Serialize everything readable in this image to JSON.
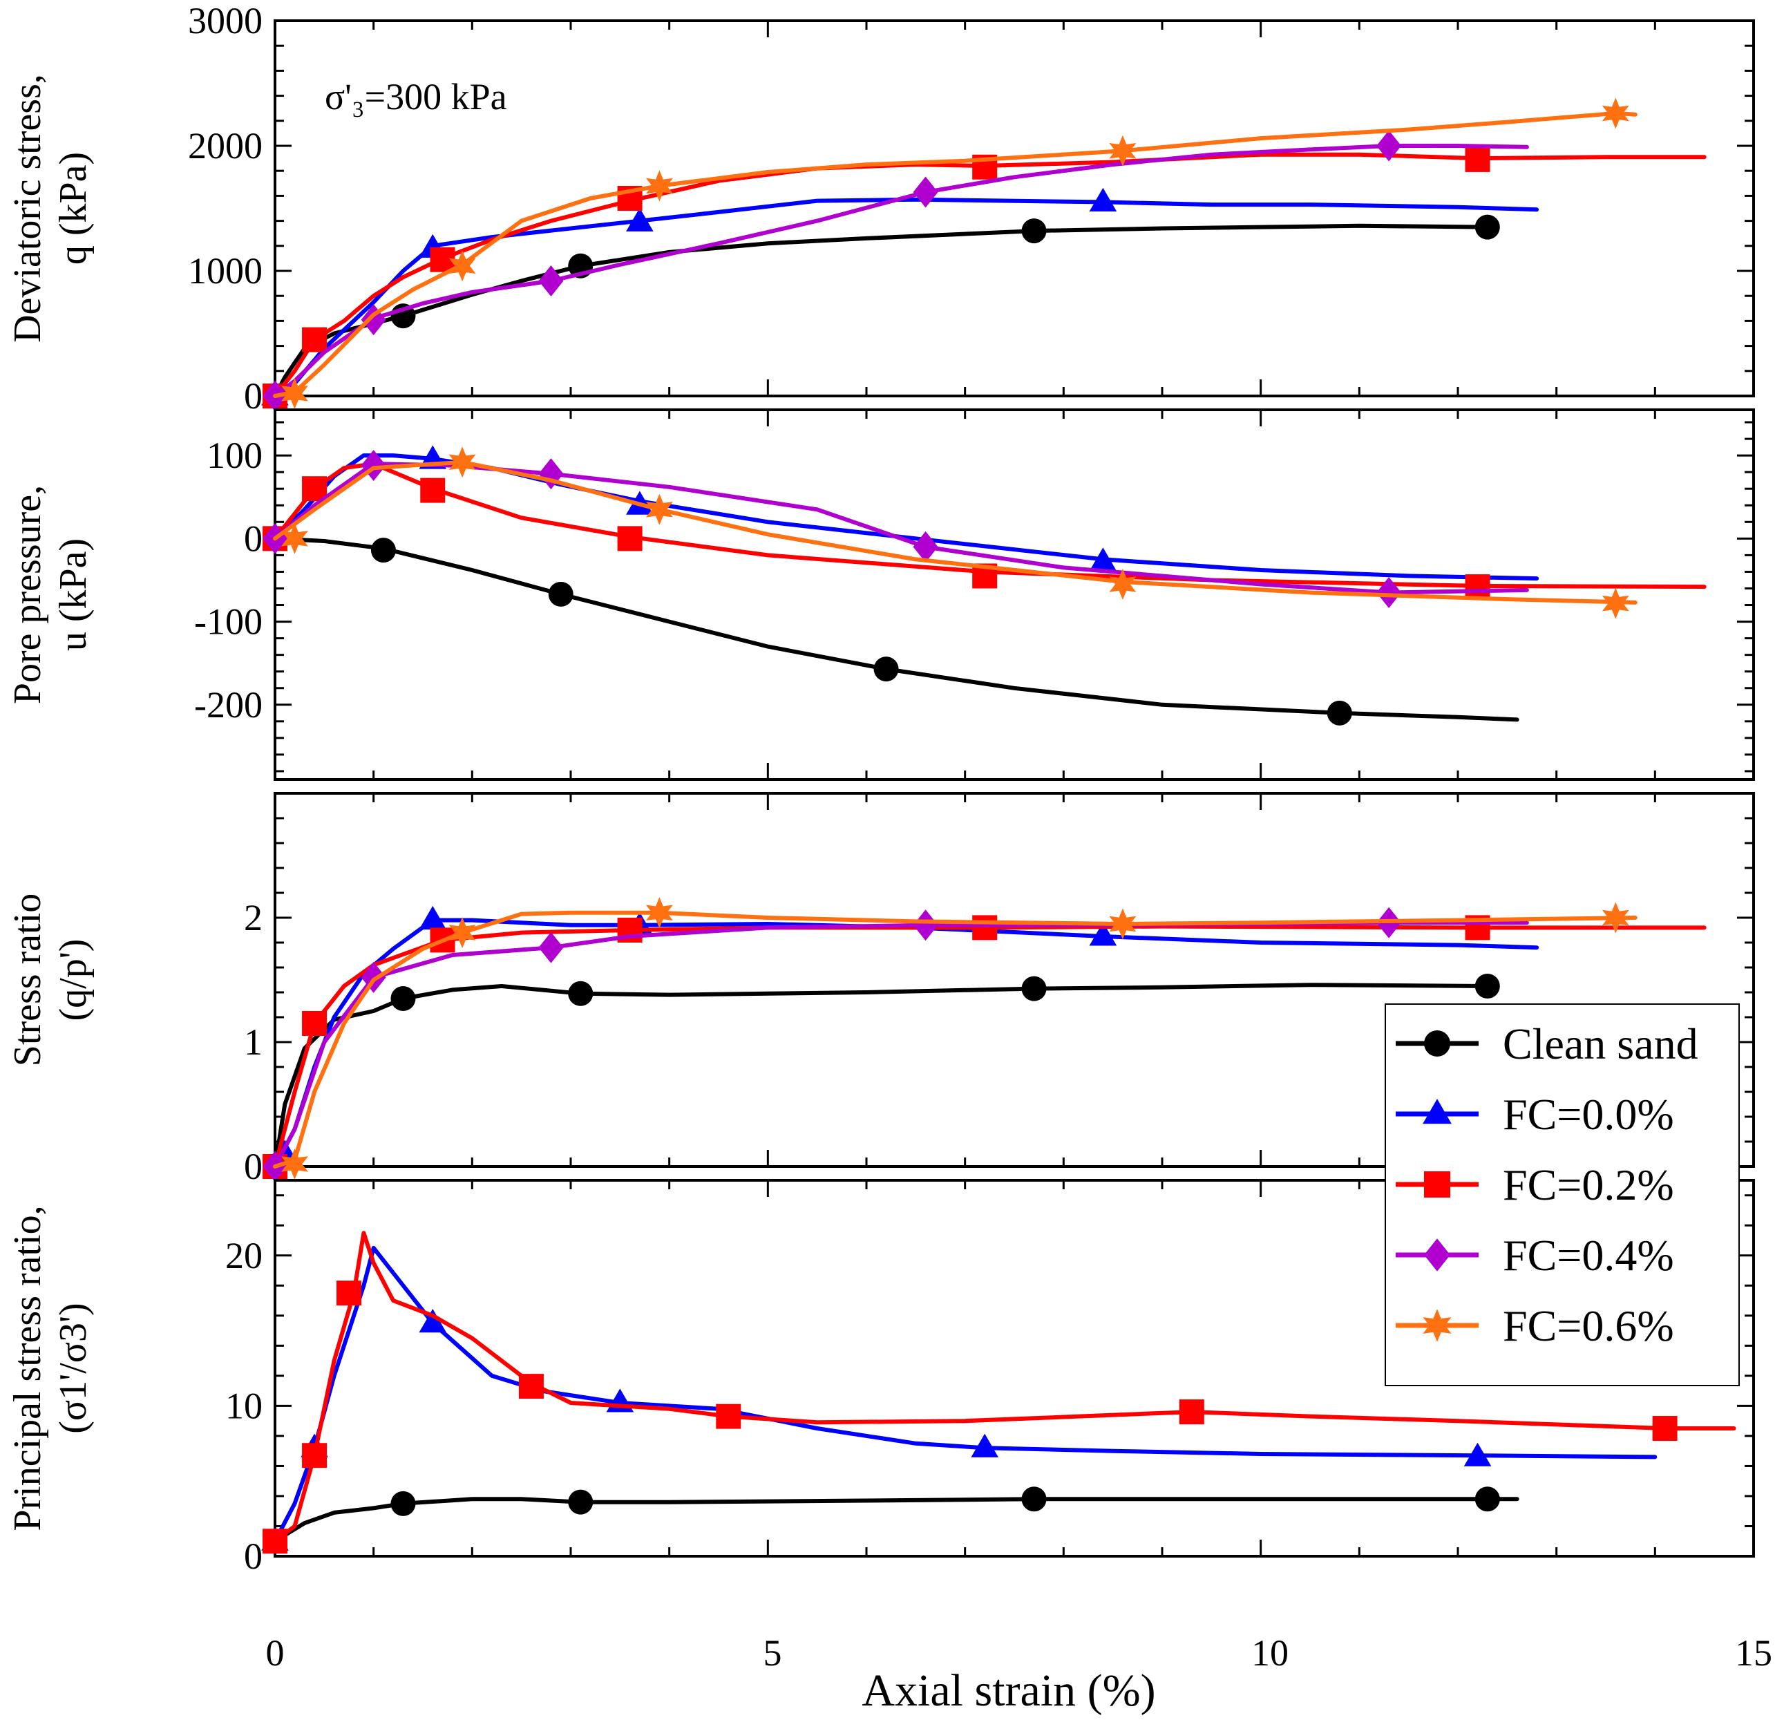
{
  "figure": {
    "annotation": "σ'₃=300 kPa",
    "xlabel": "Axial strain (%)",
    "xlim": [
      0,
      15
    ],
    "xticks": [
      "0",
      "5",
      "10",
      "15"
    ]
  },
  "colors": {
    "Clean sand": "#000000",
    "FC=0.0%": "#0000ff",
    "FC=0.2%": "#ff0000",
    "FC=0.4%": "#b000d0",
    "FC=0.6%": "#ff7010"
  },
  "legend": [
    {
      "name": "Clean sand",
      "marker": "circle"
    },
    {
      "name": "FC=0.0%",
      "marker": "triangle"
    },
    {
      "name": "FC=0.2%",
      "marker": "square"
    },
    {
      "name": "FC=0.4%",
      "marker": "diamond"
    },
    {
      "name": "FC=0.6%",
      "marker": "star"
    }
  ],
  "chart_data": [
    {
      "type": "line",
      "id": "q",
      "ylabel_lines": [
        "Deviatoric stress,",
        "q (kPa)"
      ],
      "ylim": [
        0,
        3000
      ],
      "yticks": [
        "0",
        "1000",
        "2000",
        "3000"
      ],
      "series": [
        {
          "name": "Clean sand",
          "marker": "circle",
          "x": [
            0,
            0.1,
            0.3,
            0.6,
            1.0,
            1.3,
            2.0,
            2.5,
            3.1,
            4.0,
            5.0,
            6.0,
            7.7,
            9.0,
            10.0,
            11.0,
            12.3
          ],
          "y": [
            0,
            150,
            380,
            500,
            580,
            640,
            810,
            920,
            1040,
            1150,
            1220,
            1260,
            1320,
            1340,
            1350,
            1360,
            1350
          ],
          "mx": [
            0,
            1.3,
            3.1,
            7.7,
            12.3
          ],
          "my": [
            0,
            640,
            1040,
            1320,
            1350
          ]
        },
        {
          "name": "FC=0.0%",
          "marker": "triangle",
          "x": [
            0,
            0.2,
            0.5,
            1.0,
            1.3,
            1.6,
            2.2,
            3.0,
            3.7,
            4.5,
            5.5,
            6.5,
            8.4,
            9.5,
            10.5,
            12.0,
            12.8
          ],
          "y": [
            0,
            100,
            380,
            750,
            1000,
            1200,
            1270,
            1340,
            1400,
            1470,
            1560,
            1570,
            1550,
            1530,
            1530,
            1510,
            1490
          ],
          "mx": [
            0,
            1.6,
            3.7,
            8.4
          ],
          "my": [
            0,
            1180,
            1390,
            1550
          ]
        },
        {
          "name": "FC=0.2%",
          "marker": "square",
          "x": [
            0,
            0.2,
            0.4,
            0.7,
            1.0,
            1.3,
            1.7,
            2.2,
            2.8,
            3.6,
            4.5,
            5.5,
            6.5,
            7.2,
            8.5,
            10.0,
            11.0,
            12.2,
            13.5,
            14.5
          ],
          "y": [
            0,
            200,
            450,
            600,
            800,
            950,
            1100,
            1250,
            1400,
            1560,
            1720,
            1820,
            1850,
            1840,
            1870,
            1930,
            1930,
            1900,
            1910,
            1910
          ],
          "mx": [
            0,
            0.4,
            1.7,
            3.6,
            7.2,
            12.2
          ],
          "my": [
            0,
            450,
            1090,
            1580,
            1830,
            1890
          ]
        },
        {
          "name": "FC=0.4%",
          "marker": "diamond",
          "x": [
            0,
            0.2,
            0.5,
            1.0,
            1.5,
            2.0,
            2.8,
            3.5,
            4.5,
            5.5,
            6.6,
            7.5,
            8.5,
            9.5,
            10.5,
            11.3,
            12.0,
            12.7
          ],
          "y": [
            0,
            120,
            350,
            620,
            740,
            830,
            920,
            1050,
            1220,
            1400,
            1630,
            1750,
            1850,
            1930,
            1970,
            2000,
            2000,
            1990
          ],
          "mx": [
            0,
            1.0,
            2.8,
            6.6,
            11.3
          ],
          "my": [
            0,
            610,
            920,
            1630,
            2000
          ]
        },
        {
          "name": "FC=0.6%",
          "marker": "star",
          "x": [
            0,
            0.2,
            0.5,
            1.0,
            1.4,
            1.9,
            2.5,
            3.2,
            3.9,
            5.0,
            6.0,
            7.0,
            8.6,
            10.0,
            11.5,
            12.5,
            13.6,
            13.8
          ],
          "y": [
            0,
            30,
            250,
            650,
            850,
            1050,
            1400,
            1580,
            1680,
            1790,
            1850,
            1880,
            1960,
            2060,
            2130,
            2190,
            2260,
            2250
          ],
          "mx": [
            0.2,
            1.9,
            3.9,
            8.6,
            13.6
          ],
          "my": [
            20,
            1040,
            1680,
            1960,
            2260
          ]
        }
      ]
    },
    {
      "type": "line",
      "id": "u",
      "ylabel_lines": [
        "Pore pressure,",
        "u (kPa)"
      ],
      "ylim": [
        -290,
        155
      ],
      "yticks": [
        "-200",
        "-100",
        "0",
        "100"
      ],
      "ytick_values": [
        -200,
        -100,
        0,
        100
      ],
      "series": [
        {
          "name": "Clean sand",
          "marker": "circle",
          "x": [
            0,
            0.5,
            1.1,
            2.0,
            2.9,
            4.0,
            5.0,
            6.2,
            7.5,
            9.0,
            10.8,
            12.0,
            12.6
          ],
          "y": [
            0,
            -3,
            -12,
            -38,
            -67,
            -100,
            -130,
            -157,
            -180,
            -200,
            -210,
            -215,
            -218
          ],
          "mx": [
            0,
            1.1,
            2.9,
            6.2,
            10.8
          ],
          "my": [
            0,
            -14,
            -67,
            -157,
            -210
          ]
        },
        {
          "name": "FC=0.0%",
          "marker": "triangle",
          "x": [
            0,
            0.3,
            0.6,
            0.9,
            1.2,
            1.6,
            2.2,
            2.9,
            3.7,
            5.0,
            6.5,
            8.4,
            10.0,
            11.5,
            12.8
          ],
          "y": [
            0,
            35,
            75,
            100,
            100,
            96,
            85,
            65,
            45,
            20,
            0,
            -25,
            -38,
            -45,
            -48
          ],
          "mx": [
            1.6,
            3.7,
            8.4
          ],
          "my": [
            95,
            40,
            -28
          ]
        },
        {
          "name": "FC=0.2%",
          "marker": "square",
          "x": [
            0,
            0.4,
            0.7,
            1.0,
            1.6,
            2.5,
            3.6,
            5.0,
            7.2,
            9.5,
            12.2,
            14.5
          ],
          "y": [
            0,
            60,
            85,
            90,
            60,
            25,
            2,
            -20,
            -40,
            -50,
            -57,
            -58
          ],
          "mx": [
            0,
            0.4,
            1.6,
            3.6,
            7.2,
            12.2
          ],
          "my": [
            0,
            60,
            58,
            0,
            -45,
            -58
          ]
        },
        {
          "name": "FC=0.4%",
          "marker": "diamond",
          "x": [
            0,
            0.4,
            1.0,
            1.8,
            2.8,
            4.0,
            5.5,
            6.6,
            8.0,
            10.0,
            11.3,
            12.7
          ],
          "y": [
            0,
            40,
            90,
            88,
            78,
            62,
            35,
            -10,
            -35,
            -55,
            -65,
            -62
          ],
          "mx": [
            0,
            1.0,
            2.8,
            6.6,
            11.3
          ],
          "my": [
            0,
            88,
            78,
            -10,
            -65
          ]
        },
        {
          "name": "FC=0.6%",
          "marker": "star",
          "x": [
            0,
            0.4,
            1.0,
            1.9,
            2.8,
            3.9,
            5.0,
            6.5,
            8.6,
            10.5,
            12.5,
            13.8
          ],
          "y": [
            0,
            35,
            85,
            92,
            70,
            35,
            5,
            -25,
            -52,
            -65,
            -73,
            -77
          ],
          "mx": [
            0.2,
            1.9,
            3.9,
            8.6,
            13.6
          ],
          "my": [
            0,
            92,
            35,
            -55,
            -78
          ]
        }
      ]
    },
    {
      "type": "line",
      "id": "ratio",
      "ylabel_lines": [
        "Stress ratio",
        "(q/p')"
      ],
      "ylim": [
        0,
        3.0
      ],
      "yticks": [
        "0",
        "1",
        "2"
      ],
      "ytick_values": [
        0,
        1,
        2
      ],
      "series": [
        {
          "name": "Clean sand",
          "marker": "circle",
          "x": [
            0,
            0.1,
            0.3,
            0.6,
            1.0,
            1.3,
            1.8,
            2.3,
            2.7,
            3.1,
            4.0,
            5.0,
            6.0,
            7.7,
            9.0,
            10.5,
            12.3
          ],
          "y": [
            0,
            0.5,
            0.95,
            1.18,
            1.25,
            1.35,
            1.42,
            1.45,
            1.42,
            1.39,
            1.38,
            1.39,
            1.4,
            1.43,
            1.44,
            1.46,
            1.45
          ],
          "mx": [
            0,
            1.3,
            3.1,
            7.7,
            12.3
          ],
          "my": [
            0,
            1.35,
            1.39,
            1.43,
            1.45
          ]
        },
        {
          "name": "FC=0.0%",
          "marker": "triangle",
          "x": [
            0,
            0.2,
            0.4,
            0.6,
            0.9,
            1.2,
            1.6,
            2.0,
            3.0,
            3.7,
            5.0,
            6.5,
            8.4,
            10.0,
            12.0,
            12.8
          ],
          "y": [
            0,
            0.3,
            0.8,
            1.2,
            1.55,
            1.75,
            1.98,
            1.98,
            1.94,
            1.94,
            1.95,
            1.92,
            1.85,
            1.8,
            1.78,
            1.76
          ],
          "mx": [
            0.1,
            1.6,
            3.7,
            8.4
          ],
          "my": [
            0.1,
            1.98,
            1.93,
            1.85
          ]
        },
        {
          "name": "FC=0.2%",
          "marker": "square",
          "x": [
            0,
            0.2,
            0.4,
            0.7,
            1.0,
            1.7,
            2.5,
            3.6,
            5.0,
            7.2,
            9.0,
            12.2,
            14.5
          ],
          "y": [
            0,
            0.6,
            1.15,
            1.45,
            1.62,
            1.82,
            1.88,
            1.9,
            1.92,
            1.92,
            1.93,
            1.92,
            1.92
          ],
          "mx": [
            0,
            0.4,
            1.7,
            3.6,
            7.2,
            12.2
          ],
          "my": [
            0,
            1.15,
            1.82,
            1.9,
            1.92,
            1.92
          ]
        },
        {
          "name": "FC=0.4%",
          "marker": "diamond",
          "x": [
            0,
            0.2,
            0.5,
            1.0,
            1.8,
            2.8,
            3.6,
            5.0,
            6.6,
            8.0,
            10.0,
            11.3,
            12.7
          ],
          "y": [
            0,
            0.3,
            1.0,
            1.52,
            1.7,
            1.76,
            1.85,
            1.92,
            1.94,
            1.94,
            1.95,
            1.96,
            1.96
          ],
          "mx": [
            0,
            1.0,
            2.8,
            6.6,
            11.3
          ],
          "my": [
            0,
            1.52,
            1.76,
            1.94,
            1.96
          ]
        },
        {
          "name": "FC=0.6%",
          "marker": "star",
          "x": [
            0,
            0.2,
            0.4,
            0.7,
            1.0,
            1.5,
            1.9,
            2.5,
            3.0,
            3.9,
            5.0,
            6.5,
            8.6,
            10.0,
            12.0,
            13.8
          ],
          "y": [
            0,
            0.05,
            0.6,
            1.15,
            1.5,
            1.75,
            1.88,
            2.03,
            2.04,
            2.04,
            2.0,
            1.97,
            1.95,
            1.96,
            1.98,
            2.0
          ],
          "mx": [
            0.2,
            1.9,
            3.9,
            8.6,
            13.6
          ],
          "my": [
            0.02,
            1.88,
            2.04,
            1.95,
            2.0
          ]
        }
      ]
    },
    {
      "type": "line",
      "id": "psr",
      "ylabel_lines": [
        "Principal stress ratio,",
        "(σ1'/σ3')"
      ],
      "ylim": [
        0,
        25
      ],
      "yticks": [
        "0",
        "10",
        "20"
      ],
      "ytick_values": [
        0,
        10,
        20
      ],
      "series": [
        {
          "name": "Clean sand",
          "marker": "circle",
          "x": [
            0,
            0.3,
            0.6,
            1.0,
            1.3,
            2.0,
            2.5,
            3.1,
            4.0,
            6.0,
            7.7,
            9.0,
            11.0,
            12.3,
            12.6
          ],
          "y": [
            1.0,
            2.2,
            2.9,
            3.2,
            3.5,
            3.8,
            3.8,
            3.6,
            3.6,
            3.7,
            3.8,
            3.8,
            3.8,
            3.8,
            3.8
          ],
          "mx": [
            0,
            1.3,
            3.1,
            7.7,
            12.3
          ],
          "my": [
            1.0,
            3.5,
            3.6,
            3.8,
            3.8
          ]
        },
        {
          "name": "FC=0.0%",
          "marker": "triangle",
          "x": [
            0,
            0.2,
            0.4,
            0.6,
            0.9,
            1.0,
            1.3,
            1.6,
            2.2,
            2.7,
            3.5,
            4.5,
            5.5,
            6.5,
            7.2,
            8.5,
            10.0,
            12.2,
            14.0
          ],
          "y": [
            1.0,
            3.5,
            7.2,
            12.0,
            18.0,
            20.5,
            18.0,
            15.5,
            12.0,
            11.0,
            10.2,
            9.8,
            8.5,
            7.5,
            7.2,
            7.0,
            6.8,
            6.7,
            6.6
          ],
          "mx": [
            0,
            0.4,
            1.6,
            3.5,
            7.2,
            12.2
          ],
          "my": [
            1.0,
            7.2,
            15.5,
            10.2,
            7.2,
            6.6
          ]
        },
        {
          "name": "FC=0.2%",
          "marker": "square",
          "x": [
            0,
            0.2,
            0.4,
            0.6,
            0.8,
            0.9,
            1.0,
            1.2,
            1.6,
            2.0,
            2.6,
            3.0,
            4.0,
            4.6,
            5.5,
            7.0,
            9.3,
            10.5,
            12.0,
            14.1,
            14.8
          ],
          "y": [
            1.0,
            2.0,
            6.7,
            13.0,
            17.5,
            21.5,
            19.5,
            17.0,
            16.0,
            14.5,
            11.5,
            10.2,
            9.8,
            9.3,
            8.9,
            9.0,
            9.6,
            9.3,
            9.0,
            8.5,
            8.5
          ],
          "mx": [
            0,
            0.4,
            0.75,
            2.6,
            4.6,
            9.3,
            14.1
          ],
          "my": [
            1.0,
            6.7,
            17.5,
            11.3,
            9.3,
            9.6,
            8.5
          ]
        }
      ]
    }
  ]
}
